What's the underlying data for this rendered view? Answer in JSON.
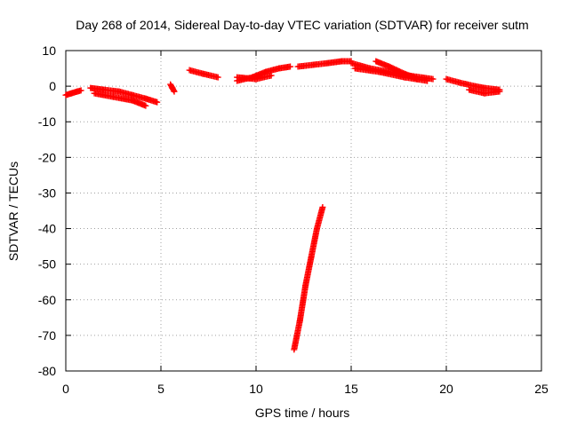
{
  "chart_data": {
    "type": "scatter",
    "title": "Day 268 of 2014, Sidereal Day-to-day VTEC variation (SDTVAR) for receiver sutm",
    "xlabel": "GPS time / hours",
    "ylabel": "SDTVAR / TECUs",
    "xlim": [
      0,
      25
    ],
    "ylim": [
      -80,
      10
    ],
    "xticks": [
      0,
      5,
      10,
      15,
      20,
      25
    ],
    "yticks": [
      10,
      0,
      -10,
      -20,
      -30,
      -40,
      -50,
      -60,
      -70,
      -80
    ],
    "grid": true,
    "marker": "+",
    "color": "#ff0000",
    "series": [
      {
        "name": "SDTVAR",
        "segments": [
          [
            [
              0.0,
              -2.5
            ],
            [
              0.3,
              -2.0
            ],
            [
              0.6,
              -1.5
            ],
            [
              0.8,
              -1.2
            ]
          ],
          [
            [
              1.3,
              -0.5
            ],
            [
              2.0,
              -1.0
            ],
            [
              2.8,
              -1.5
            ],
            [
              3.5,
              -2.5
            ],
            [
              4.2,
              -3.5
            ],
            [
              4.8,
              -4.5
            ]
          ],
          [
            [
              1.5,
              -2.0
            ],
            [
              2.5,
              -3.0
            ],
            [
              3.5,
              -4.0
            ],
            [
              4.2,
              -5.5
            ]
          ],
          [
            [
              5.5,
              0.5
            ],
            [
              5.6,
              -0.5
            ],
            [
              5.7,
              -1.5
            ]
          ],
          [
            [
              6.5,
              4.5
            ],
            [
              7.2,
              3.5
            ],
            [
              8.0,
              2.5
            ]
          ],
          [
            [
              9.0,
              1.5
            ],
            [
              9.8,
              2.5
            ],
            [
              10.5,
              4.0
            ],
            [
              11.2,
              5.0
            ],
            [
              11.8,
              5.5
            ]
          ],
          [
            [
              9.0,
              2.5
            ],
            [
              10.0,
              2.0
            ],
            [
              10.8,
              3.0
            ]
          ],
          [
            [
              12.2,
              5.5
            ],
            [
              13.0,
              6.0
            ],
            [
              13.8,
              6.5
            ],
            [
              14.5,
              7.0
            ],
            [
              15.0,
              7.0
            ]
          ],
          [
            [
              12.0,
              -74.0
            ],
            [
              12.3,
              -66.0
            ],
            [
              12.6,
              -56.0
            ],
            [
              12.9,
              -48.0
            ],
            [
              13.2,
              -40.0
            ],
            [
              13.5,
              -34.0
            ]
          ],
          [
            [
              15.0,
              6.5
            ],
            [
              16.0,
              5.0
            ],
            [
              17.0,
              4.0
            ],
            [
              18.0,
              3.0
            ],
            [
              19.3,
              2.0
            ]
          ],
          [
            [
              15.2,
              5.0
            ],
            [
              16.5,
              4.0
            ],
            [
              17.8,
              2.5
            ],
            [
              19.0,
              1.5
            ]
          ],
          [
            [
              16.3,
              7.0
            ],
            [
              17.0,
              5.5
            ],
            [
              17.8,
              3.5
            ],
            [
              18.5,
              2.0
            ]
          ],
          [
            [
              20.0,
              2.0
            ],
            [
              20.7,
              1.0
            ],
            [
              21.5,
              0.0
            ],
            [
              22.0,
              -0.5
            ],
            [
              22.8,
              -1.0
            ]
          ],
          [
            [
              21.2,
              -1.0
            ],
            [
              22.0,
              -2.0
            ],
            [
              22.8,
              -1.5
            ]
          ]
        ]
      }
    ]
  }
}
